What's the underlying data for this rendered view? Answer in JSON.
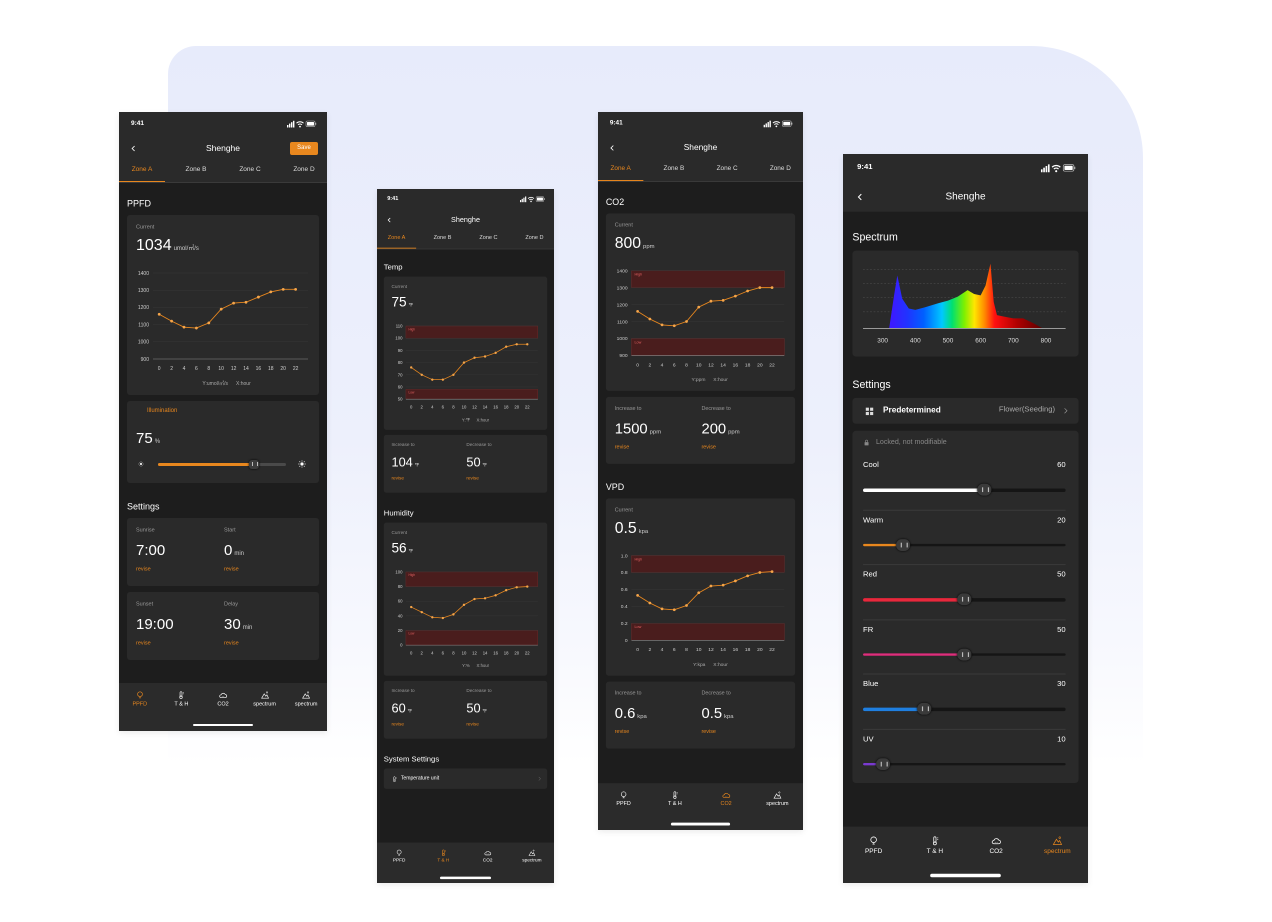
{
  "screens": [
    {
      "status_time": "9:41",
      "title": "Shenghe",
      "action": "Save",
      "tabs": [
        "Zone A",
        "Zone B",
        "Zone C",
        "Zone D"
      ],
      "active_tab": 0,
      "sections": [
        {
          "title": "PPFD",
          "cards": [
            {
              "kind": "chart",
              "label": "Current",
              "value": 1034,
              "unit": "umol/㎡/s",
              "chart": {
                "x": [
                  0,
                  2,
                  4,
                  6,
                  8,
                  10,
                  12,
                  14,
                  16,
                  18,
                  20,
                  22
                ],
                "values": [
                  1160,
                  1120,
                  1085,
                  1080,
                  1110,
                  1190,
                  1225,
                  1230,
                  1260,
                  1290,
                  1305,
                  1305
                ],
                "xlim": [
                  -1,
                  24
                ],
                "ylim": [
                  900,
                  1400
                ],
                "xticks": [
                  0,
                  2,
                  4,
                  6,
                  8,
                  10,
                  12,
                  14,
                  16,
                  18,
                  20,
                  22
                ],
                "yticks": [
                  900,
                  1000,
                  1100,
                  1200,
                  1300,
                  1400
                ],
                "y_label": "Y:umol/㎡/s",
                "x_label": "X:hour"
              }
            },
            {
              "kind": "slider_card",
              "title": "Illumination",
              "value": 75,
              "unit": "%"
            }
          ]
        },
        {
          "title": "Settings",
          "cards": [
            {
              "kind": "pair",
              "items": [
                {
                  "label": "Sunrise",
                  "value": "7:00",
                  "action": "revise"
                },
                {
                  "label": "Start",
                  "value": 0,
                  "unit": "min",
                  "action": "revise"
                }
              ]
            },
            {
              "kind": "pair",
              "items": [
                {
                  "label": "Sunset",
                  "value": "19:00",
                  "action": "revise"
                },
                {
                  "label": "Delay",
                  "value": 30,
                  "unit": "min",
                  "action": "revise"
                }
              ]
            }
          ]
        }
      ],
      "nav": [
        "PPFD",
        "T & H",
        "CO2",
        "spectrum",
        "spectrum"
      ],
      "active_nav": 0
    },
    {
      "status_time": "9:41",
      "title": "Shenghe",
      "tabs": [
        "Zone A",
        "Zone B",
        "Zone C",
        "Zone D"
      ],
      "active_tab": 0,
      "sections": [
        {
          "title": "Temp",
          "cards": [
            {
              "kind": "chart",
              "label": "Current",
              "value": 75,
              "unit": "℉",
              "chart": {
                "x": [
                  0,
                  2,
                  4,
                  6,
                  8,
                  10,
                  12,
                  14,
                  16,
                  18,
                  20,
                  22
                ],
                "values": [
                  76,
                  70,
                  66,
                  66,
                  70,
                  80,
                  84,
                  85,
                  88,
                  93,
                  95,
                  95
                ],
                "xlim": [
                  -1,
                  24
                ],
                "ylim": [
                  50,
                  110
                ],
                "xticks": [
                  0,
                  2,
                  4,
                  6,
                  8,
                  10,
                  12,
                  14,
                  16,
                  18,
                  20,
                  22
                ],
                "yticks": [
                  50,
                  60,
                  70,
                  80,
                  90,
                  100,
                  110
                ],
                "bands": [
                  {
                    "label": "High",
                    "from": 100,
                    "to": 110
                  },
                  {
                    "label": "Low",
                    "from": 50,
                    "to": 58
                  }
                ],
                "y_label": "Y:℉",
                "x_label": "X:hour"
              }
            },
            {
              "kind": "pair",
              "items": [
                {
                  "label": "Increase to",
                  "value": 104,
                  "unit": "℉",
                  "action": "revise"
                },
                {
                  "label": "Decrease to",
                  "value": 50,
                  "unit": "℉",
                  "action": "revise"
                }
              ]
            }
          ]
        },
        {
          "title": "Humidity",
          "cards": [
            {
              "kind": "chart",
              "label": "Current",
              "value": 56,
              "unit": "℉",
              "chart": {
                "x": [
                  0,
                  2,
                  4,
                  6,
                  8,
                  10,
                  12,
                  14,
                  16,
                  18,
                  20,
                  22
                ],
                "values": [
                  52,
                  45,
                  38,
                  37,
                  42,
                  55,
                  63,
                  64,
                  68,
                  75,
                  79,
                  80
                ],
                "xlim": [
                  -1,
                  24
                ],
                "ylim": [
                  0,
                  100
                ],
                "xticks": [
                  0,
                  2,
                  4,
                  6,
                  8,
                  10,
                  12,
                  14,
                  16,
                  18,
                  20,
                  22
                ],
                "yticks": [
                  0,
                  20,
                  40,
                  60,
                  80,
                  100
                ],
                "bands": [
                  {
                    "label": "High",
                    "from": 80,
                    "to": 100
                  },
                  {
                    "label": "Low",
                    "from": 0,
                    "to": 20
                  }
                ],
                "y_label": "Y:%",
                "x_label": "X:hour"
              }
            },
            {
              "kind": "pair",
              "items": [
                {
                  "label": "Increase to",
                  "value": 60,
                  "unit": "℉",
                  "action": "revise"
                },
                {
                  "label": "Decrease to",
                  "value": 50,
                  "unit": "℉",
                  "action": "revise"
                }
              ]
            }
          ]
        },
        {
          "title": "System Settings",
          "cards": [
            {
              "kind": "row",
              "label": "Temperature unit"
            }
          ]
        }
      ],
      "nav": [
        "PPFD",
        "T & H",
        "CO2",
        "spectrum"
      ],
      "active_nav": 1
    },
    {
      "status_time": "9:41",
      "title": "Shenghe",
      "tabs": [
        "Zone A",
        "Zone B",
        "Zone C",
        "Zone D"
      ],
      "active_tab": 0,
      "sections": [
        {
          "title": "CO2",
          "cards": [
            {
              "kind": "chart",
              "label": "Current",
              "value": 800,
              "unit": "ppm",
              "chart": {
                "x": [
                  0,
                  2,
                  4,
                  6,
                  8,
                  10,
                  12,
                  14,
                  16,
                  18,
                  20,
                  22
                ],
                "values": [
                  1160,
                  1115,
                  1080,
                  1075,
                  1100,
                  1185,
                  1220,
                  1225,
                  1250,
                  1280,
                  1300,
                  1300
                ],
                "xlim": [
                  -1,
                  24
                ],
                "ylim": [
                  900,
                  1400
                ],
                "xticks": [
                  0,
                  2,
                  4,
                  6,
                  8,
                  10,
                  12,
                  14,
                  16,
                  18,
                  20,
                  22
                ],
                "yticks": [
                  900,
                  1000,
                  1100,
                  1200,
                  1300,
                  1400
                ],
                "bands": [
                  {
                    "label": "High",
                    "from": 1300,
                    "to": 1400
                  },
                  {
                    "label": "Low",
                    "from": 900,
                    "to": 1000
                  }
                ],
                "y_label": "Y:ppm",
                "x_label": "X:hour"
              }
            },
            {
              "kind": "pair",
              "items": [
                {
                  "label": "Increase to",
                  "value": 1500,
                  "unit": "ppm",
                  "action": "revise"
                },
                {
                  "label": "Decrease to",
                  "value": 200,
                  "unit": "ppm",
                  "action": "revise"
                }
              ]
            }
          ]
        },
        {
          "title": "VPD",
          "cards": [
            {
              "kind": "chart",
              "label": "Current",
              "value": 0.5,
              "unit": "kpa",
              "chart": {
                "x": [
                  0,
                  2,
                  4,
                  6,
                  8,
                  10,
                  12,
                  14,
                  16,
                  18,
                  20,
                  22
                ],
                "values": [
                  0.53,
                  0.44,
                  0.37,
                  0.36,
                  0.41,
                  0.56,
                  0.64,
                  0.65,
                  0.7,
                  0.76,
                  0.8,
                  0.81
                ],
                "xlim": [
                  -1,
                  24
                ],
                "ylim": [
                  0,
                  1
                ],
                "xticks": [
                  0,
                  2,
                  4,
                  6,
                  8,
                  10,
                  12,
                  14,
                  16,
                  18,
                  20,
                  22
                ],
                "yticks": [
                  0,
                  0.2,
                  0.4,
                  0.6,
                  0.8,
                  {
                    "value": 1,
                    "label": "1.0"
                  }
                ],
                "bands": [
                  {
                    "label": "High",
                    "from": 0.8,
                    "to": 1
                  },
                  {
                    "label": "Low",
                    "from": 0,
                    "to": 0.2
                  }
                ],
                "y_label": "Y:kpa",
                "x_label": "X:hour"
              }
            },
            {
              "kind": "pair",
              "items": [
                {
                  "label": "Increase to",
                  "value": 0.6,
                  "unit": "kpa",
                  "action": "revise"
                },
                {
                  "label": "Decrease to",
                  "value": 0.5,
                  "unit": "kpa",
                  "action": "revise"
                }
              ]
            }
          ]
        }
      ],
      "nav": [
        "PPFD",
        "T & H",
        "CO2",
        "spectrum"
      ],
      "active_nav": 2
    },
    {
      "status_time": "9:41",
      "title": "Shenghe",
      "sections": [
        {
          "title": "Spectrum",
          "cards": [
            {
              "kind": "spectrum",
              "chart": {
                "x": [
                  320,
                  335,
                  345,
                  360,
                  380,
                  400,
                  430,
                  470,
                  500,
                  530,
                  560,
                  580,
                  600,
                  615,
                  630,
                  640,
                  650,
                  670,
                  700,
                  730,
                  760,
                  790
                ],
                "values": [
                  0,
                  50,
                  80,
                  45,
                  30,
                  28,
                  32,
                  38,
                  42,
                  48,
                  58,
                  52,
                  50,
                  65,
                  98,
                  40,
                  20,
                  18,
                  15,
                  15,
                  8,
                  0
                ],
                "xlim": [
                  240,
                  860
                ],
                "ylim": [
                  0,
                  100
                ],
                "xticks": [
                  300,
                  400,
                  500,
                  600,
                  700,
                  800
                ]
              }
            }
          ]
        },
        {
          "title": "Settings",
          "cards": [
            {
              "kind": "select",
              "label": "Predetermined",
              "value": "Flower(Seeding)"
            },
            {
              "kind": "sliders",
              "note": "Locked, not modifiable",
              "items": [
                {
                  "name": "Cool",
                  "value": 60,
                  "color": "#ffffff"
                },
                {
                  "name": "Warm",
                  "value": 20,
                  "color": "#e8871e"
                },
                {
                  "name": "Red",
                  "value": 50,
                  "color": "#e8283c"
                },
                {
                  "name": "FR",
                  "value": 50,
                  "color": "#de2f7c"
                },
                {
                  "name": "Blue",
                  "value": 30,
                  "color": "#1f7fe0"
                },
                {
                  "name": "UV",
                  "value": 10,
                  "color": "#7a3ad0"
                }
              ]
            }
          ]
        }
      ],
      "nav": [
        "PPFD",
        "T & H",
        "CO2",
        "spectrum"
      ],
      "active_nav": 3
    }
  ]
}
